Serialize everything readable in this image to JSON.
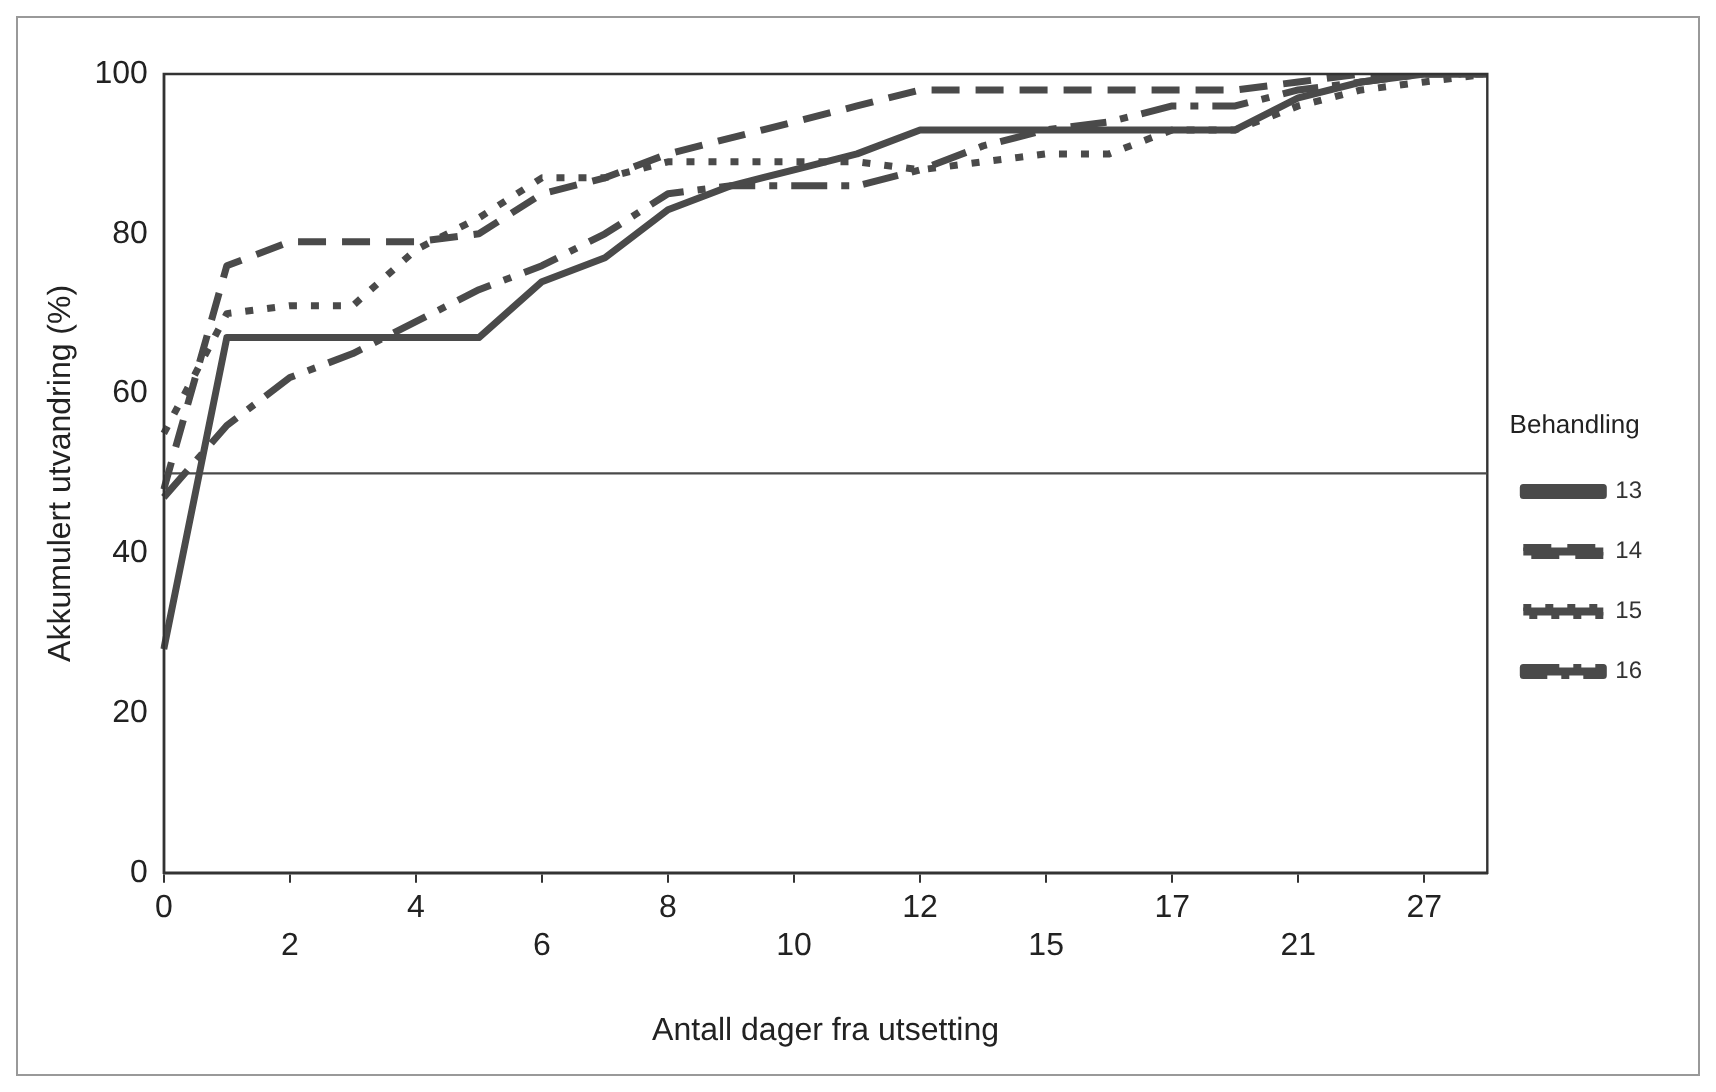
{
  "chart_data": {
    "type": "line",
    "xlabel": "Antall dager fra utsetting",
    "ylabel": "Akkumulert utvandring (%)",
    "legend_title": "Behandling",
    "categories": [
      "0",
      null,
      "2",
      null,
      "4",
      null,
      "6",
      null,
      "8",
      null,
      "10",
      null,
      "12",
      null,
      "15",
      null,
      "17",
      null,
      "21",
      null,
      "27",
      null
    ],
    "series": [
      {
        "name": "13",
        "color": "#4a4a4a",
        "line_style": "solid",
        "values": [
          28,
          67,
          67,
          67,
          67,
          67,
          74,
          77,
          83,
          86,
          88,
          90,
          93,
          93,
          93,
          93,
          93,
          93,
          97,
          99,
          100,
          100
        ]
      },
      {
        "name": "14",
        "color": "#4a4a4a",
        "line_style": "dashed",
        "values": [
          48,
          76,
          79,
          79,
          79,
          80,
          85,
          87,
          90,
          92,
          94,
          96,
          98,
          98,
          98,
          98,
          98,
          98,
          99,
          100,
          100,
          100
        ]
      },
      {
        "name": "15",
        "color": "#4a4a4a",
        "line_style": "dotted",
        "values": [
          55,
          70,
          71,
          71,
          78,
          82,
          87,
          87,
          89,
          89,
          89,
          89,
          88,
          89,
          90,
          90,
          93,
          93,
          96,
          98,
          99,
          100
        ]
      },
      {
        "name": "16",
        "color": "#4a4a4a",
        "line_style": "dashdot",
        "values": [
          47,
          56,
          62,
          65,
          69,
          73,
          76,
          80,
          85,
          86,
          86,
          86,
          88,
          91,
          93,
          94,
          96,
          96,
          98,
          99,
          100,
          100
        ]
      }
    ],
    "ylim": [
      0,
      100
    ],
    "yticks": [
      0,
      20,
      40,
      60,
      80,
      100
    ],
    "grid": false,
    "legend": "right",
    "marker": "none",
    "ref_lines": [
      {
        "axis": "y",
        "value": 50,
        "color": "#4a4a4a"
      }
    ]
  }
}
